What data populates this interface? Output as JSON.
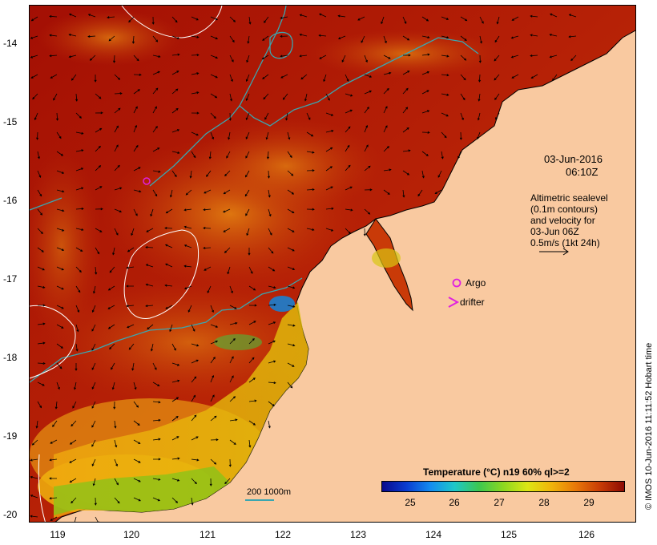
{
  "map": {
    "lat_ticks": [
      "-14",
      "-15",
      "-16",
      "-17",
      "-18",
      "-19",
      "-20"
    ],
    "lon_ticks": [
      "119",
      "120",
      "121",
      "122",
      "123",
      "124",
      "125",
      "126"
    ],
    "lat_range": [
      -20.1,
      -13.5
    ],
    "lon_range": [
      118.65,
      126.7
    ]
  },
  "annotations": {
    "date_line1": "03-Jun-2016",
    "date_line2": "06:10Z",
    "info_line1": "Altimetric sealevel",
    "info_line2": "(0.1m contours)",
    "info_line3": "and velocity for",
    "info_line4": "03-Jun 06Z",
    "info_line5": "0.5m/s (1kt 24h)",
    "argo_label": "Argo",
    "drifter_label": "drifter",
    "scale_label": "200  1000m"
  },
  "colorbar": {
    "title": "Temperature (°C) n19 60% ql>=2",
    "labels": [
      "25",
      "26",
      "27",
      "28",
      "29"
    ]
  },
  "credit": "© IMOS 10-Jun-2016 11:11:52 Hobart time",
  "colors": {
    "land": "#f9c9a0",
    "sst_hot": "#a30f04",
    "contour_cyan": "#3aa6b0",
    "argo_marker": "#e020e0"
  }
}
